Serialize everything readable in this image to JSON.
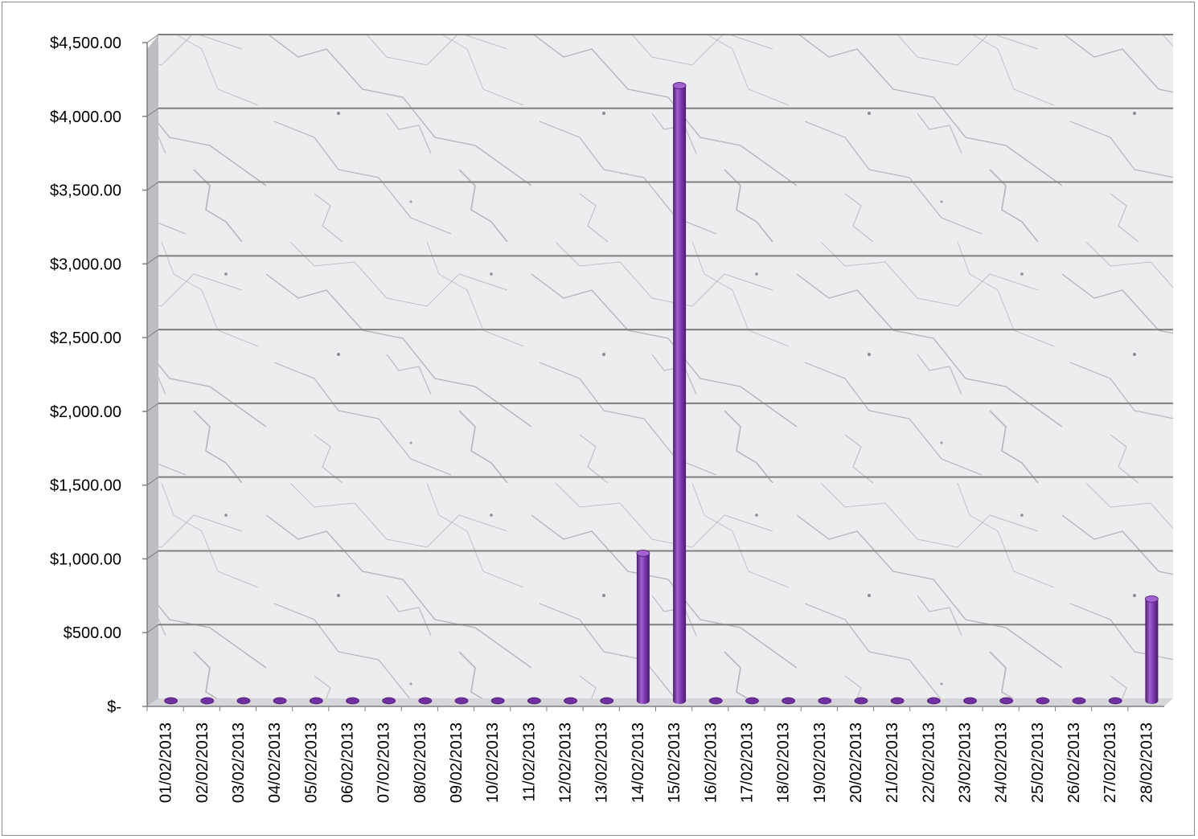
{
  "chart_data": {
    "type": "bar",
    "title": "",
    "xlabel": "",
    "ylabel": "",
    "categories": [
      "01/02/2013",
      "02/02/2013",
      "03/02/2013",
      "04/02/2013",
      "05/02/2013",
      "06/02/2013",
      "07/02/2013",
      "08/02/2013",
      "09/02/2013",
      "10/02/2013",
      "11/02/2013",
      "12/02/2013",
      "13/02/2013",
      "14/02/2013",
      "15/02/2013",
      "16/02/2013",
      "17/02/2013",
      "18/02/2013",
      "19/02/2013",
      "20/02/2013",
      "21/02/2013",
      "22/02/2013",
      "23/02/2013",
      "24/02/2013",
      "25/02/2013",
      "26/02/2013",
      "27/02/2013",
      "28/02/2013"
    ],
    "series": [
      {
        "values": [
          0,
          0,
          0,
          0,
          0,
          0,
          0,
          0,
          0,
          0,
          0,
          0,
          0,
          1000,
          4170,
          0,
          0,
          0,
          0,
          0,
          0,
          0,
          0,
          0,
          0,
          0,
          0,
          690
        ]
      }
    ],
    "ylim": [
      0,
      4500
    ],
    "y_ticks": [
      "$-",
      "$500.00",
      "$1,000.00",
      "$1,500.00",
      "$2,000.00",
      "$2,500.00",
      "$3,000.00",
      "$3,500.00",
      "$4,000.00",
      "$4,500.00"
    ],
    "grid": true,
    "legend": "none",
    "style": "3d-cylinder",
    "colors": {
      "bar": "#7030a0",
      "bar_light": "#a162d0",
      "bar_dark": "#4b1a70",
      "gridline": "#7f7f7f",
      "wall": "#e6e6e8",
      "vein": "#9a9aa2"
    }
  }
}
